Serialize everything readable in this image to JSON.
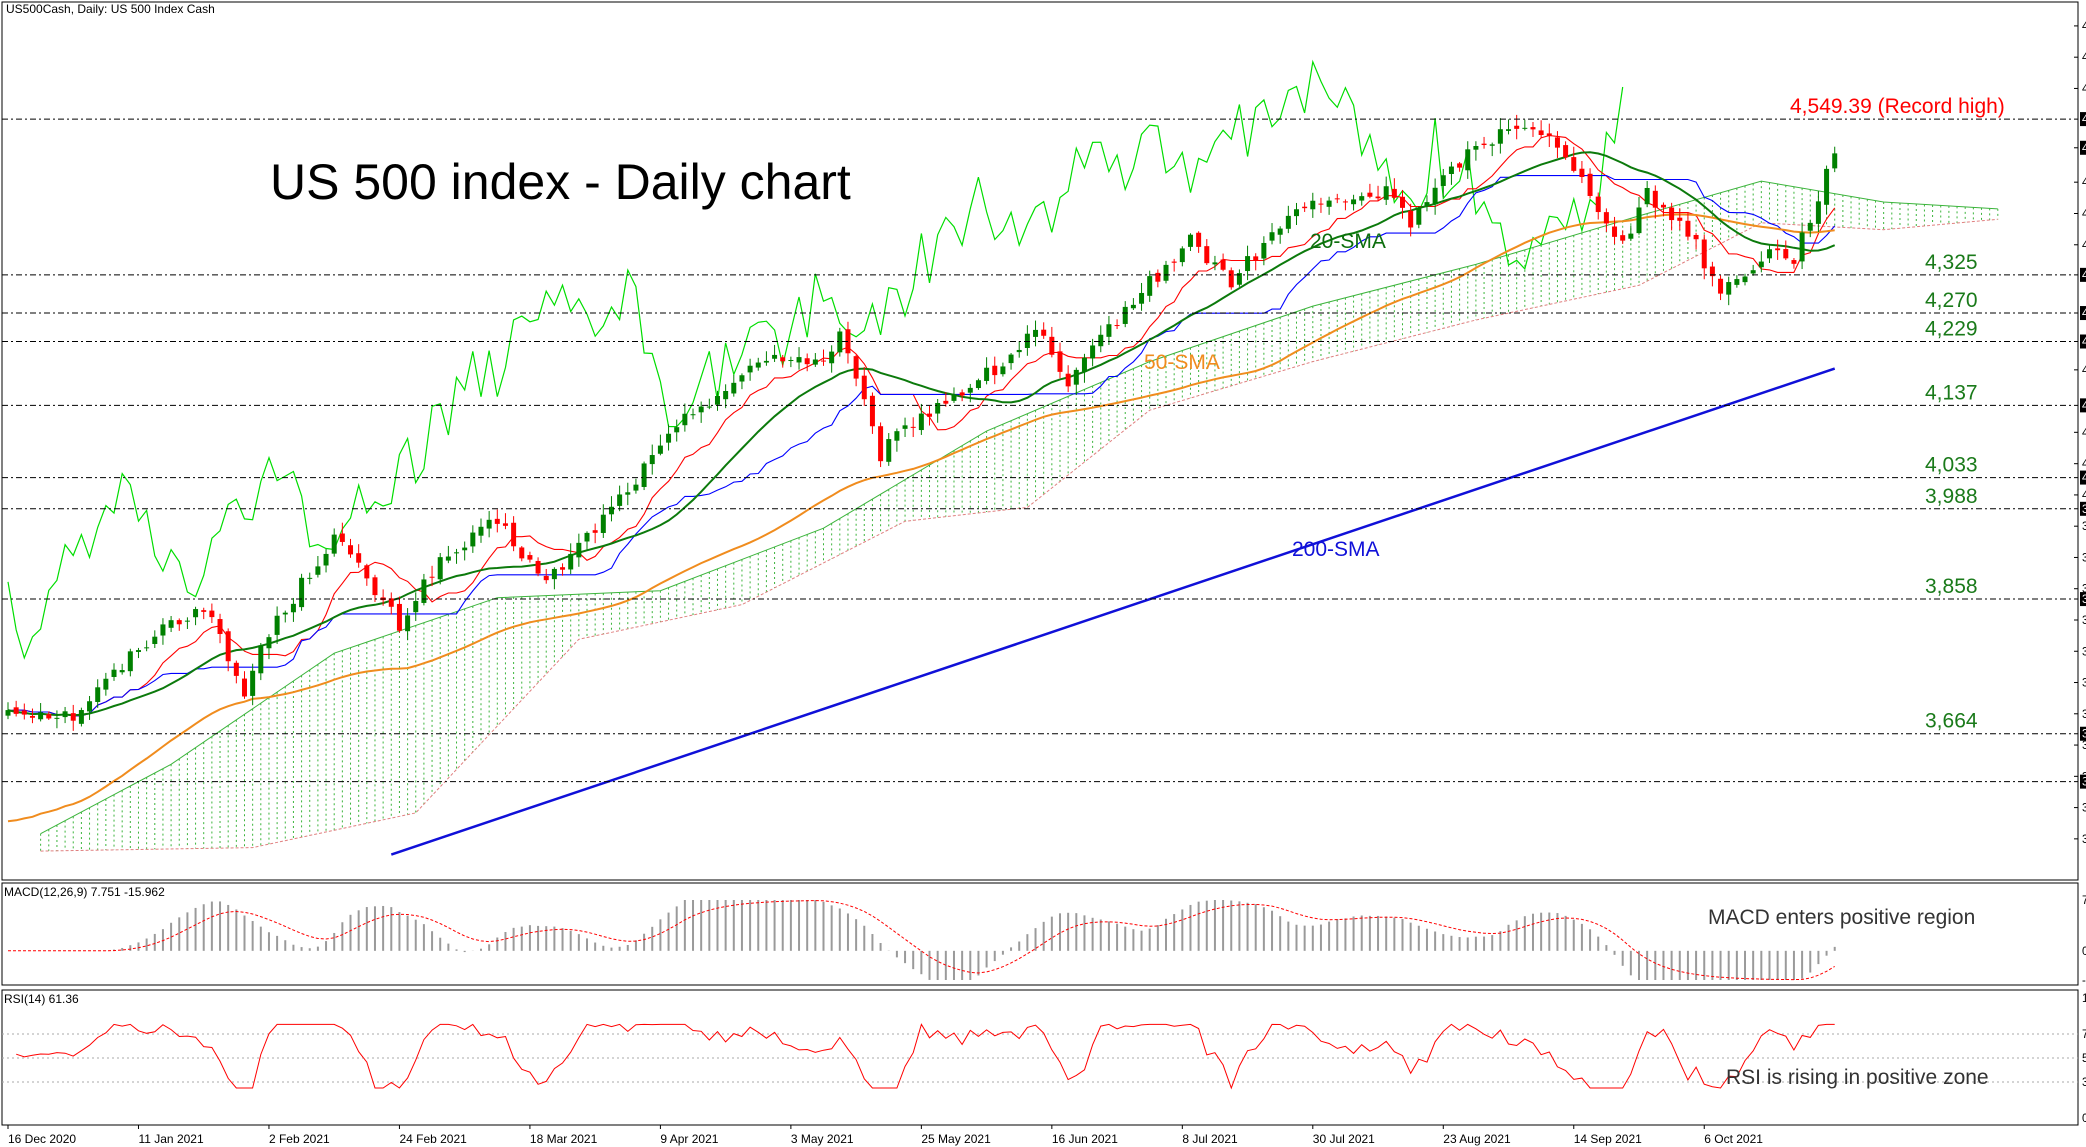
{
  "header": {
    "symbol_line": "US500Cash, Daily:  US 500 Index Cash",
    "title": "US 500 index - Daily chart",
    "macd_label": "MACD(12,26,9) 7.751 -15.962",
    "rsi_label": "RSI(14) 61.36"
  },
  "chart_data": {
    "type": "candlestick",
    "title": "US 500 index - Daily chart",
    "symbol": "US500Cash, Daily:  US 500 Index Cash",
    "ylim": [
      3485,
      4695
    ],
    "price_ticks": [
      "4683.61",
      "4638.55",
      "4593.53",
      "4549.39",
      "4508.05",
      "4458.51",
      "4413.39",
      "4368.33",
      "4325.00",
      "4270.00",
      "4229.00",
      "4188.17",
      "4137.00",
      "4098.19",
      "4053.00",
      "4033.00",
      "4008.01",
      "3988.00",
      "3962.97",
      "3917.93",
      "3872.89",
      "3858.00",
      "3827.85",
      "3782.81",
      "3737.77",
      "3692.73",
      "3664.00",
      "3647.69",
      "3602.65",
      "3595.00",
      "3557.61",
      "3512.57"
    ],
    "date_ticks": [
      "16 Dec 2020",
      "11 Jan 2021",
      "2 Feb 2021",
      "24 Feb 2021",
      "18 Mar 2021",
      "9 Apr 2021",
      "3 May 2021",
      "25 May 2021",
      "16 Jun 2021",
      "8 Jul 2021",
      "30 Jul 2021",
      "23 Aug 2021",
      "14 Sep 2021",
      "6 Oct 2021"
    ],
    "levels": [
      {
        "value": 4549.39,
        "label": "4,549.39 (Record high)",
        "axis_label": "4549.39",
        "color": "#ff0000"
      },
      {
        "value": 4325,
        "label": "4,325",
        "axis_label": "4325.00",
        "color": "#1a7a1a"
      },
      {
        "value": 4270,
        "label": "4,270",
        "axis_label": "4270.00",
        "color": "#1a7a1a"
      },
      {
        "value": 4229,
        "label": "4,229",
        "axis_label": "4229.00",
        "color": "#1a7a1a"
      },
      {
        "value": 4137,
        "label": "4,137",
        "axis_label": "4137.00",
        "color": "#1a7a1a"
      },
      {
        "value": 4033,
        "label": "4,033",
        "axis_label": "4033.00",
        "color": "#1a7a1a"
      },
      {
        "value": 3988,
        "label": "3,988",
        "axis_label": "3988.00",
        "color": "#1a7a1a"
      },
      {
        "value": 3858,
        "label": "3,858",
        "axis_label": "3858.00",
        "color": "#1a7a1a"
      },
      {
        "value": 3664,
        "label": "3,664",
        "axis_label": "3664.00",
        "color": "#1a7a1a"
      },
      {
        "value": 3595,
        "label": "",
        "axis_label": "3595.00",
        "color": "#1a7a1a"
      }
    ],
    "current_price": "4508.05",
    "ma_labels": {
      "sma20": "20-SMA",
      "sma50": "50-SMA",
      "sma200": "200-SMA"
    },
    "anchors": [
      {
        "i": 0,
        "p": 3700
      },
      {
        "i": 8,
        "p": 3690
      },
      {
        "i": 18,
        "p": 3810
      },
      {
        "i": 24,
        "p": 3850
      },
      {
        "i": 29,
        "p": 3720
      },
      {
        "i": 31,
        "p": 3790
      },
      {
        "i": 40,
        "p": 3950
      },
      {
        "i": 48,
        "p": 3820
      },
      {
        "i": 52,
        "p": 3900
      },
      {
        "i": 60,
        "p": 3970
      },
      {
        "i": 66,
        "p": 3880
      },
      {
        "i": 73,
        "p": 3975
      },
      {
        "i": 84,
        "p": 4130
      },
      {
        "i": 94,
        "p": 4210
      },
      {
        "i": 100,
        "p": 4200
      },
      {
        "i": 102,
        "p": 4240
      },
      {
        "i": 107,
        "p": 4065
      },
      {
        "i": 111,
        "p": 4115
      },
      {
        "i": 122,
        "p": 4195
      },
      {
        "i": 126,
        "p": 4250
      },
      {
        "i": 130,
        "p": 4160
      },
      {
        "i": 135,
        "p": 4250
      },
      {
        "i": 145,
        "p": 4375
      },
      {
        "i": 150,
        "p": 4315
      },
      {
        "i": 158,
        "p": 4420
      },
      {
        "i": 170,
        "p": 4445
      },
      {
        "i": 172,
        "p": 4400
      },
      {
        "i": 178,
        "p": 4490
      },
      {
        "i": 185,
        "p": 4545
      },
      {
        "i": 188,
        "p": 4535
      },
      {
        "i": 194,
        "p": 4445
      },
      {
        "i": 198,
        "p": 4370
      },
      {
        "i": 201,
        "p": 4440
      },
      {
        "i": 206,
        "p": 4390
      },
      {
        "i": 210,
        "p": 4300
      },
      {
        "i": 216,
        "p": 4360
      },
      {
        "i": 219,
        "p": 4350
      },
      {
        "i": 224,
        "p": 4500
      }
    ],
    "sma200_line": [
      [
        47,
        3490
      ],
      [
        224,
        4190
      ]
    ],
    "cloud_top": [
      [
        4,
        3520
      ],
      [
        20,
        3620
      ],
      [
        40,
        3780
      ],
      [
        60,
        3860
      ],
      [
        80,
        3870
      ],
      [
        100,
        3960
      ],
      [
        120,
        4100
      ],
      [
        140,
        4200
      ],
      [
        160,
        4280
      ],
      [
        180,
        4340
      ],
      [
        200,
        4410
      ],
      [
        215,
        4460
      ],
      [
        230,
        4430
      ],
      [
        244,
        4420
      ]
    ],
    "cloud_bottom": [
      [
        4,
        3495
      ],
      [
        30,
        3500
      ],
      [
        50,
        3550
      ],
      [
        70,
        3800
      ],
      [
        90,
        3850
      ],
      [
        110,
        3970
      ],
      [
        125,
        3990
      ],
      [
        140,
        4130
      ],
      [
        160,
        4200
      ],
      [
        180,
        4260
      ],
      [
        200,
        4310
      ],
      [
        215,
        4400
      ],
      [
        230,
        4390
      ],
      [
        244,
        4405
      ]
    ],
    "macd": {
      "ylim": [
        -44.199,
        77.024
      ],
      "ticks": [
        "77.024",
        "0.000",
        "-44.199"
      ],
      "label": "MACD(12,26,9) 7.751 -15.962"
    },
    "rsi": {
      "ylim": [
        0,
        100
      ],
      "ticks": [
        "100.00",
        "70.00",
        "50.00",
        "30.00",
        "0.00"
      ],
      "label": "RSI(14) 61.36",
      "levels": [
        70,
        50,
        30
      ]
    }
  },
  "annotations": {
    "macd_note": "MACD enters positive region",
    "rsi_note": "RSI is rising in positive zone"
  },
  "colors": {
    "bull_candle": "#008000",
    "bear_candle": "#ff0000",
    "sma20": "#0c7a0c",
    "sma50": "#f08c1e",
    "sma200": "#1010d8",
    "tenkan": "#ff0000",
    "kijun": "#0000ff",
    "chikou": "#00dd00",
    "cloud_bull": "#3cb43c",
    "cloud_bear": "#e08080",
    "level_line": "#000000",
    "label_green": "#1a7a1a",
    "record_red": "#ff0000"
  }
}
